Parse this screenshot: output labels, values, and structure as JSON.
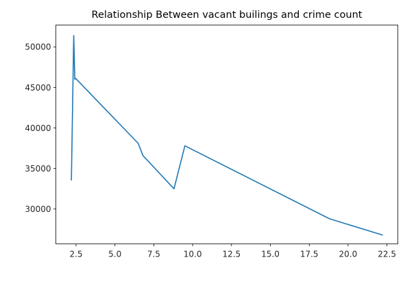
{
  "chart_data": {
    "type": "line",
    "title": "Relationship Between vacant builings and crime count",
    "xlabel": "",
    "ylabel": "",
    "xlim": [
      1.2,
      23.2
    ],
    "ylim": [
      25700,
      52700
    ],
    "grid": false,
    "x_ticks": [
      2.5,
      5.0,
      7.5,
      10.0,
      12.5,
      15.0,
      17.5,
      20.0,
      22.5
    ],
    "x_tick_labels": [
      "2.5",
      "5.0",
      "7.5",
      "10.0",
      "12.5",
      "15.0",
      "17.5",
      "20.0",
      "22.5"
    ],
    "y_ticks": [
      30000,
      35000,
      40000,
      45000,
      50000
    ],
    "y_tick_labels": [
      "30000",
      "35000",
      "40000",
      "45000",
      "50000"
    ],
    "series": [
      {
        "color": "#1f77b4",
        "x": [
          2.2,
          2.35,
          2.42,
          2.48,
          6.5,
          6.8,
          8.8,
          9.5,
          18.8,
          22.2
        ],
        "y": [
          33600,
          51400,
          46000,
          46100,
          38100,
          36600,
          32500,
          37800,
          28800,
          26800
        ]
      }
    ]
  }
}
